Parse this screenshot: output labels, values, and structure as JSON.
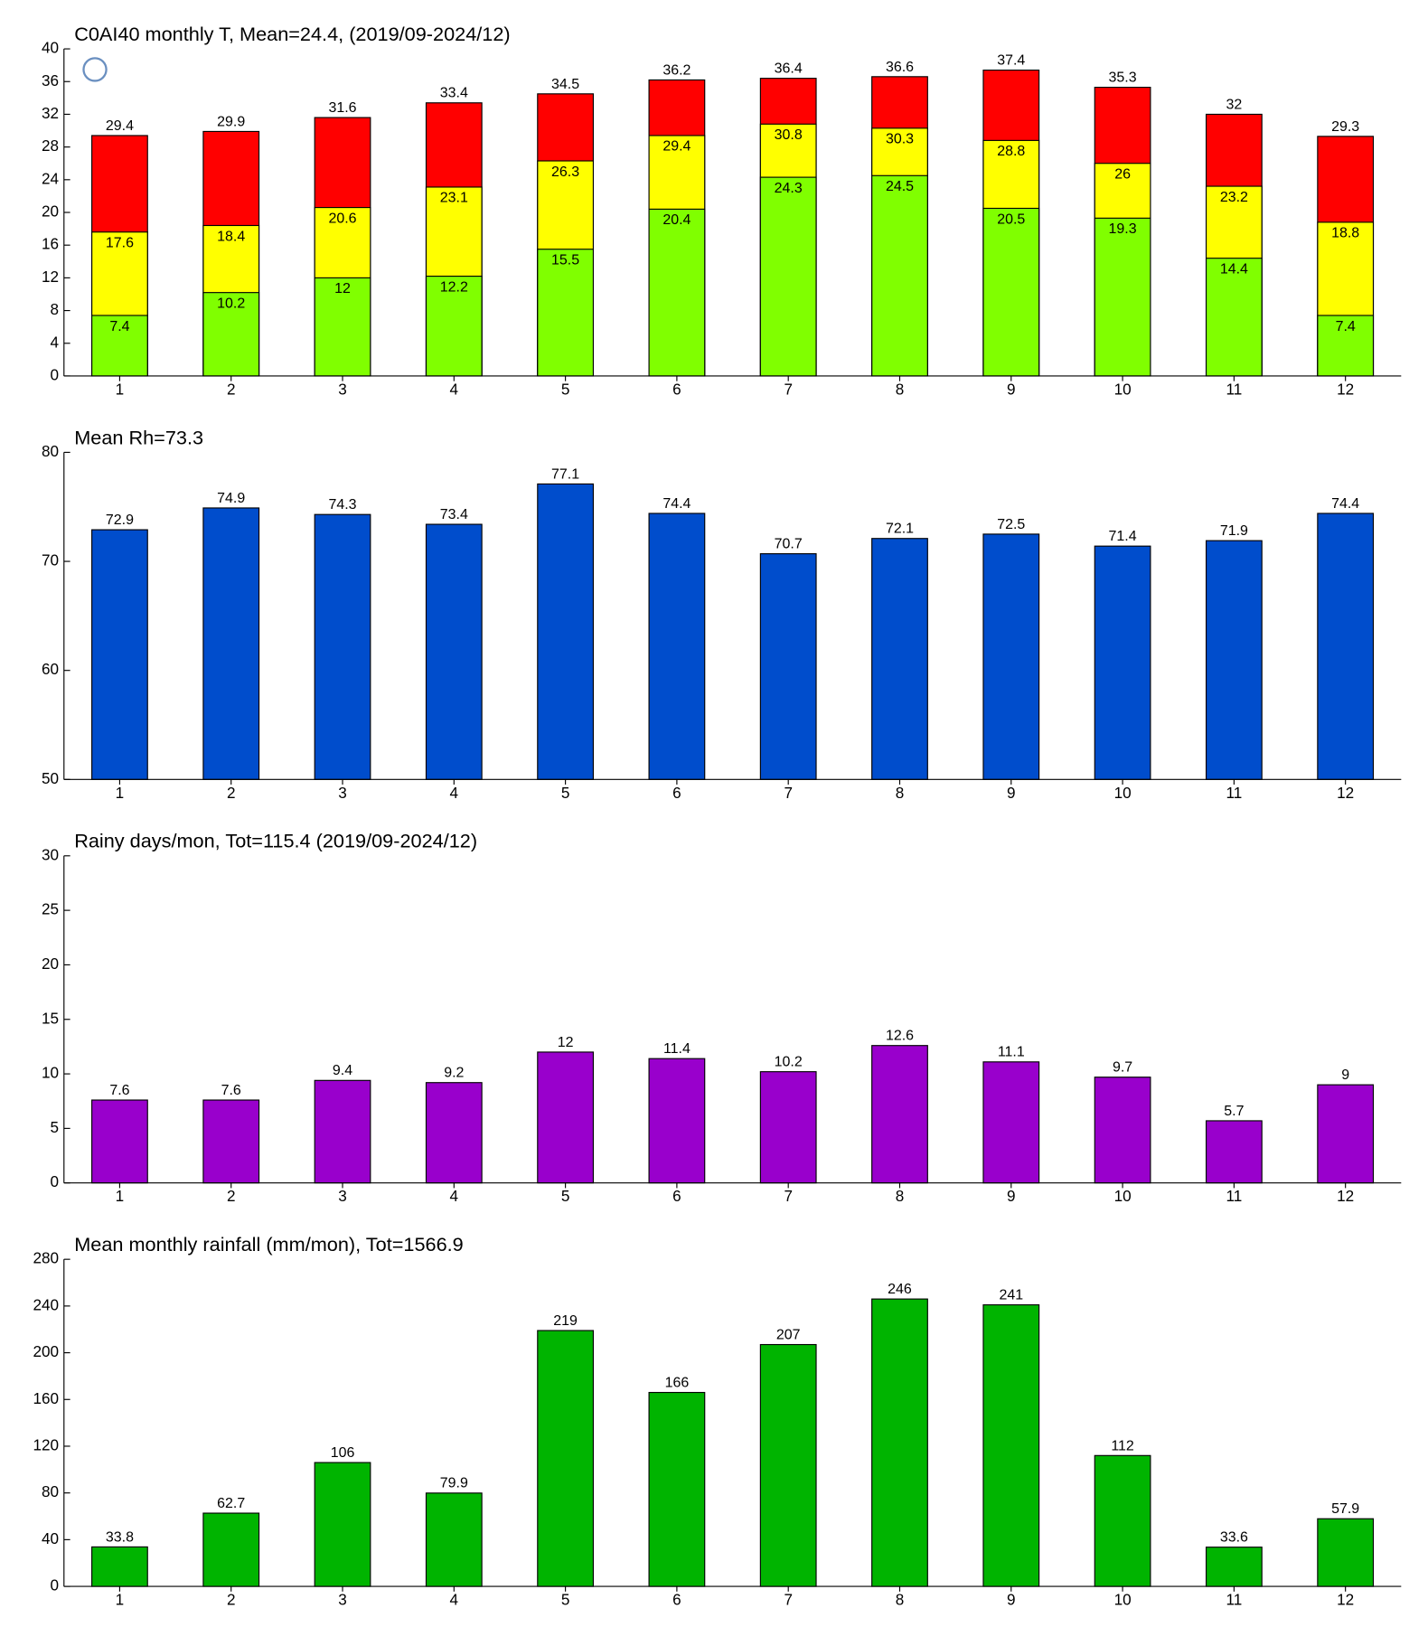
{
  "chart_data": [
    {
      "type": "bar",
      "title": "C0AI40 monthly T, Mean=24.4, (2019/09-2024/12)",
      "categories": [
        "1",
        "2",
        "3",
        "4",
        "5",
        "6",
        "7",
        "8",
        "9",
        "10",
        "11",
        "12"
      ],
      "series": [
        {
          "color": "#ff0000",
          "label_position": "above",
          "values": [
            29.4,
            29.9,
            31.6,
            33.4,
            34.5,
            36.2,
            36.4,
            36.6,
            37.4,
            35.3,
            32,
            29.3
          ]
        },
        {
          "color": "#ffff00",
          "label_position": "inside",
          "values": [
            17.6,
            18.4,
            20.6,
            23.1,
            26.3,
            29.4,
            30.8,
            30.3,
            28.8,
            26,
            23.2,
            18.8
          ]
        },
        {
          "color": "#80ff00",
          "label_position": "inside",
          "values": [
            7.4,
            10.2,
            12,
            12.2,
            15.5,
            20.4,
            24.3,
            24.5,
            20.5,
            19.3,
            14.4,
            7.4
          ]
        }
      ],
      "ylim": [
        0,
        40
      ],
      "yticks": [
        0,
        4,
        8,
        12,
        16,
        20,
        24,
        28,
        32,
        36,
        40
      ]
    },
    {
      "type": "bar",
      "title": "Mean Rh=73.3",
      "categories": [
        "1",
        "2",
        "3",
        "4",
        "5",
        "6",
        "7",
        "8",
        "9",
        "10",
        "11",
        "12"
      ],
      "values": [
        72.9,
        74.9,
        74.3,
        73.4,
        77.1,
        74.4,
        70.7,
        72.1,
        72.5,
        71.4,
        71.9,
        74.4
      ],
      "color": "#004dcc",
      "ylim": [
        50,
        80
      ],
      "yticks": [
        50,
        60,
        70,
        80
      ]
    },
    {
      "type": "bar",
      "title": "Rainy days/mon, Tot=115.4 (2019/09-2024/12)",
      "categories": [
        "1",
        "2",
        "3",
        "4",
        "5",
        "6",
        "7",
        "8",
        "9",
        "10",
        "11",
        "12"
      ],
      "values": [
        7.6,
        7.6,
        9.4,
        9.2,
        12,
        11.4,
        10.2,
        12.6,
        11.1,
        9.7,
        5.7,
        9
      ],
      "color": "#9900cc",
      "ylim": [
        0,
        30
      ],
      "yticks": [
        0,
        5,
        10,
        15,
        20,
        25,
        30
      ]
    },
    {
      "type": "bar",
      "title": "Mean monthly rainfall (mm/mon), Tot=1566.9",
      "categories": [
        "1",
        "2",
        "3",
        "4",
        "5",
        "6",
        "7",
        "8",
        "9",
        "10",
        "11",
        "12"
      ],
      "values": [
        33.8,
        62.7,
        106,
        79.9,
        219,
        166,
        207,
        246,
        241,
        112,
        33.6,
        57.9
      ],
      "color": "#00b400",
      "ylim": [
        0,
        280
      ],
      "yticks": [
        0,
        40,
        80,
        120,
        160,
        200,
        240,
        280
      ]
    }
  ]
}
